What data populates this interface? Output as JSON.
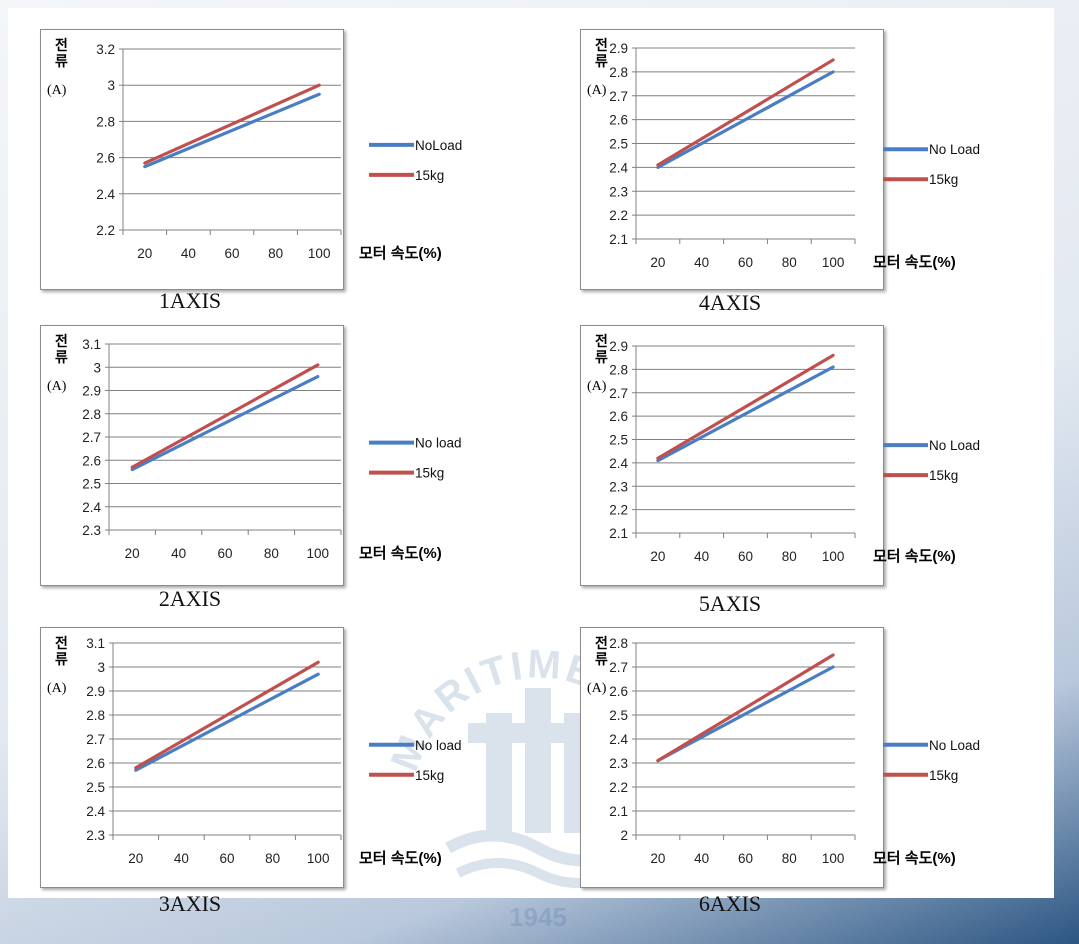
{
  "chart_data": [
    {
      "type": "line",
      "title": "1AXIS",
      "ylabel": "전류",
      "yunit": "(A)",
      "xlabel": "모터 속도(%)",
      "x_ticks": [
        "20",
        "40",
        "60",
        "80",
        "100"
      ],
      "y_ticks": [
        "2.2",
        "2.4",
        "2.6",
        "2.8",
        "3",
        "3.2"
      ],
      "ylim": [
        2.2,
        3.2
      ],
      "grid": "horizontal",
      "legend": "right",
      "series": [
        {
          "name": "NoLoad",
          "x": [
            20,
            100
          ],
          "y": [
            2.55,
            2.95
          ],
          "color": "#4a7ec4"
        },
        {
          "name": "15kg",
          "x": [
            20,
            100
          ],
          "y": [
            2.57,
            3.0
          ],
          "color": "#c0504d"
        }
      ]
    },
    {
      "type": "line",
      "title": "4AXIS",
      "ylabel": "전류",
      "yunit": "(A)",
      "xlabel": "모터 속도(%)",
      "x_ticks": [
        "20",
        "40",
        "60",
        "80",
        "100"
      ],
      "y_ticks": [
        "2.1",
        "2.2",
        "2.3",
        "2.4",
        "2.5",
        "2.6",
        "2.7",
        "2.8",
        "2.9"
      ],
      "ylim": [
        2.1,
        2.9
      ],
      "grid": "horizontal",
      "legend": "right",
      "series": [
        {
          "name": "No Load",
          "x": [
            20,
            100
          ],
          "y": [
            2.4,
            2.8
          ],
          "color": "#4a7ec4"
        },
        {
          "name": "15kg",
          "x": [
            20,
            100
          ],
          "y": [
            2.41,
            2.85
          ],
          "color": "#c0504d"
        }
      ]
    },
    {
      "type": "line",
      "title": "2AXIS",
      "ylabel": "전류",
      "yunit": "(A)",
      "xlabel": "모터 속도(%)",
      "x_ticks": [
        "20",
        "40",
        "60",
        "80",
        "100"
      ],
      "y_ticks": [
        "2.3",
        "2.4",
        "2.5",
        "2.6",
        "2.7",
        "2.8",
        "2.9",
        "3",
        "3.1"
      ],
      "ylim": [
        2.3,
        3.1
      ],
      "grid": "horizontal",
      "legend": "right",
      "series": [
        {
          "name": "No load",
          "x": [
            20,
            100
          ],
          "y": [
            2.56,
            2.96
          ],
          "color": "#4a7ec4"
        },
        {
          "name": "15kg",
          "x": [
            20,
            100
          ],
          "y": [
            2.57,
            3.01
          ],
          "color": "#c0504d"
        }
      ]
    },
    {
      "type": "line",
      "title": "5AXIS",
      "ylabel": "전류",
      "yunit": "(A)",
      "xlabel": "모터 속도(%)",
      "x_ticks": [
        "20",
        "40",
        "60",
        "80",
        "100"
      ],
      "y_ticks": [
        "2.1",
        "2.2",
        "2.3",
        "2.4",
        "2.5",
        "2.6",
        "2.7",
        "2.8",
        "2.9"
      ],
      "ylim": [
        2.1,
        2.9
      ],
      "grid": "horizontal",
      "legend": "right",
      "series": [
        {
          "name": "No Load",
          "x": [
            20,
            100
          ],
          "y": [
            2.41,
            2.81
          ],
          "color": "#4a7ec4"
        },
        {
          "name": "15kg",
          "x": [
            20,
            100
          ],
          "y": [
            2.42,
            2.86
          ],
          "color": "#c0504d"
        }
      ]
    },
    {
      "type": "line",
      "title": "3AXIS",
      "ylabel": "전류",
      "yunit": "(A)",
      "xlabel": "모터 속도(%)",
      "x_ticks": [
        "20",
        "40",
        "60",
        "80",
        "100"
      ],
      "y_ticks": [
        "2.3",
        "2.4",
        "2.5",
        "2.6",
        "2.7",
        "2.8",
        "2.9",
        "3",
        "3.1"
      ],
      "ylim": [
        2.3,
        3.1
      ],
      "grid": "horizontal",
      "legend": "right",
      "series": [
        {
          "name": "No load",
          "x": [
            20,
            100
          ],
          "y": [
            2.57,
            2.97
          ],
          "color": "#4a7ec4"
        },
        {
          "name": "15kg",
          "x": [
            20,
            100
          ],
          "y": [
            2.58,
            3.02
          ],
          "color": "#c0504d"
        }
      ]
    },
    {
      "type": "line",
      "title": "6AXIS",
      "ylabel": "전류",
      "yunit": "(A)",
      "xlabel": "모터 속도(%)",
      "x_ticks": [
        "20",
        "40",
        "60",
        "80",
        "100"
      ],
      "y_ticks": [
        "2",
        "2.1",
        "2.2",
        "2.3",
        "2.4",
        "2.5",
        "2.6",
        "2.7",
        "2.8"
      ],
      "ylim": [
        2,
        2.8
      ],
      "grid": "horizontal",
      "legend": "right",
      "series": [
        {
          "name": "No Load",
          "x": [
            20,
            100
          ],
          "y": [
            2.31,
            2.7
          ],
          "color": "#4a7ec4"
        },
        {
          "name": "15kg",
          "x": [
            20,
            100
          ],
          "y": [
            2.31,
            2.75
          ],
          "color": "#c0504d"
        }
      ]
    }
  ],
  "watermark": {
    "text": "KOREA MARITIME UNIVERSITY",
    "year": "1945"
  }
}
